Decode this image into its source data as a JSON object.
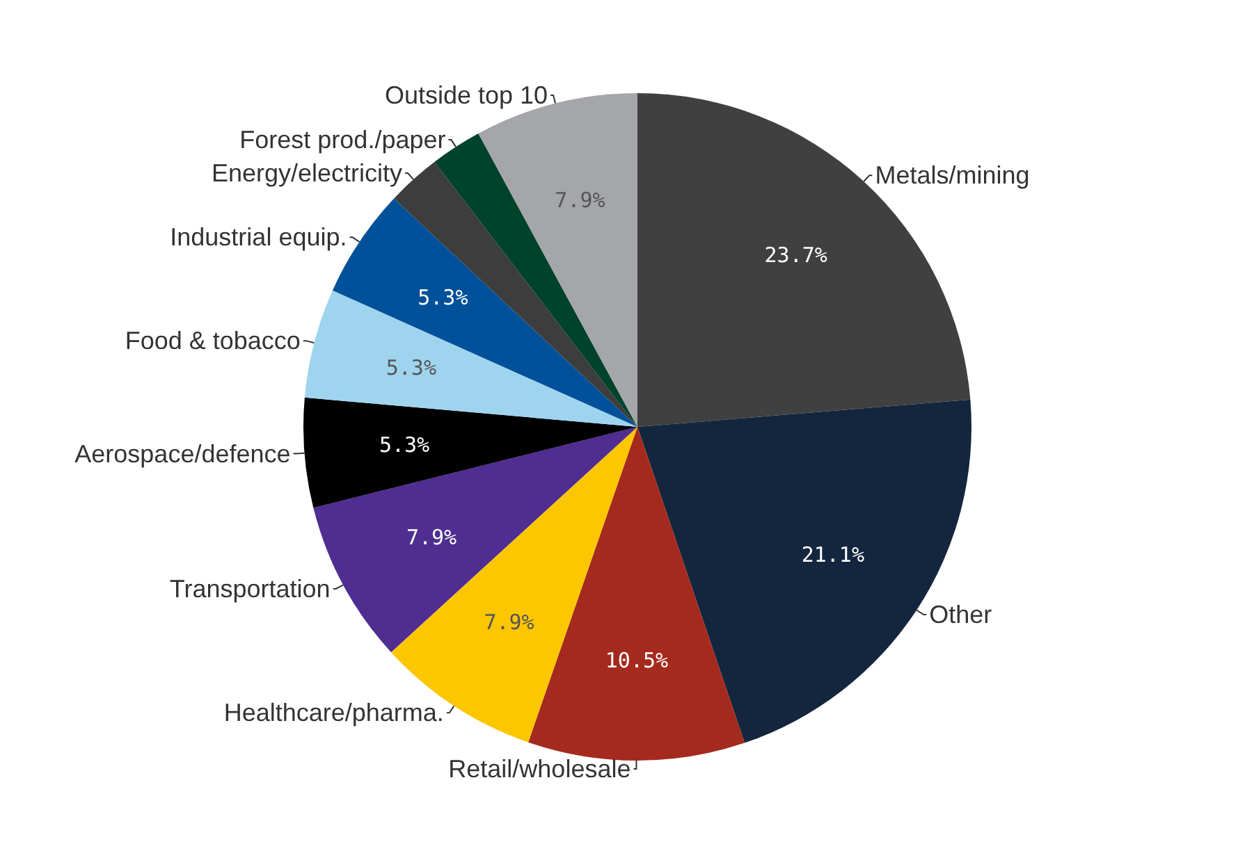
{
  "chart_data": {
    "type": "pie",
    "categories": [
      "Metals/mining",
      "Other",
      "Retail/wholesale",
      "Healthcare/pharma.",
      "Transportation",
      "Aerospace/defence",
      "Food & tobacco",
      "Industrial equip.",
      "Energy/electricity",
      "Forest prod./paper",
      "Outside top 10"
    ],
    "values": [
      23.7,
      21.1,
      10.5,
      7.9,
      7.9,
      5.3,
      5.3,
      5.3,
      2.6,
      2.5,
      7.9
    ],
    "colors": [
      "#404040",
      "#14263d",
      "#a52a1e",
      "#fcc600",
      "#4f2d91",
      "#000000",
      "#9fd4ef",
      "#00519a",
      "#3d3d3d",
      "#00432c",
      "#a5a6aa"
    ],
    "value_labels": [
      "23.7%",
      "21.1%",
      "10.5%",
      "7.9%",
      "7.9%",
      "5.3%",
      "5.3%",
      "5.3%",
      null,
      null,
      "7.9%"
    ]
  }
}
